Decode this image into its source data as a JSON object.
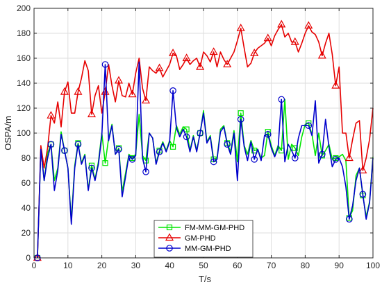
{
  "chart_data": {
    "type": "line",
    "xlabel": "T/s",
    "ylabel": "OSPA/m",
    "xlim": [
      0,
      100
    ],
    "ylim": [
      0,
      200
    ],
    "xticks": [
      0,
      10,
      20,
      30,
      40,
      50,
      60,
      70,
      80,
      90,
      100
    ],
    "yticks": [
      0,
      20,
      40,
      60,
      80,
      100,
      120,
      140,
      160,
      180,
      200
    ],
    "grid": true,
    "legend_position": "bottom-center",
    "series": [
      {
        "name": "FM-MM-GM-PHD",
        "color": "#00e600",
        "marker": "square",
        "marker_every": 4,
        "x": [
          1,
          2,
          3,
          4,
          5,
          6,
          7,
          8,
          9,
          10,
          11,
          12,
          13,
          14,
          15,
          16,
          17,
          18,
          19,
          20,
          21,
          22,
          23,
          24,
          25,
          26,
          27,
          28,
          29,
          30,
          31,
          32,
          33,
          34,
          35,
          36,
          37,
          38,
          39,
          40,
          41,
          42,
          43,
          44,
          45,
          46,
          47,
          48,
          49,
          50,
          51,
          52,
          53,
          54,
          55,
          56,
          57,
          58,
          59,
          60,
          61,
          62,
          63,
          64,
          65,
          66,
          67,
          68,
          69,
          70,
          71,
          72,
          73,
          74,
          75,
          76,
          77,
          78,
          79,
          80,
          81,
          82,
          83,
          84,
          85,
          86,
          87,
          88,
          89,
          90,
          91,
          92,
          93,
          94,
          95,
          96,
          97,
          98,
          99,
          100
        ],
        "values": [
          0,
          87,
          62,
          84,
          91,
          62,
          72,
          101,
          86,
          72,
          30,
          74,
          92,
          76,
          83,
          55,
          74,
          63,
          77,
          100,
          76,
          96,
          107,
          83,
          88,
          53,
          68,
          83,
          80,
          83,
          115,
          82,
          78,
          100,
          96,
          76,
          86,
          93,
          86,
          94,
          89,
          106,
          99,
          105,
          103,
          86,
          98,
          86,
          100,
          118,
          93,
          98,
          79,
          80,
          103,
          106,
          92,
          85,
          102,
          77,
          116,
          90,
          83,
          94,
          86,
          87,
          80,
          82,
          101,
          90,
          82,
          90,
          86,
          127,
          79,
          91,
          88,
          82,
          97,
          107,
          108,
          99,
          82,
          100,
          82,
          86,
          91,
          79,
          80,
          81,
          83,
          78,
          32,
          38,
          66,
          72,
          50,
          33,
          45,
          81
        ]
      },
      {
        "name": "GM-PHD",
        "color": "#e60000",
        "marker": "triangle",
        "marker_every": 4,
        "x": [
          1,
          2,
          3,
          4,
          5,
          6,
          7,
          8,
          9,
          10,
          11,
          12,
          13,
          14,
          15,
          16,
          17,
          18,
          19,
          20,
          21,
          22,
          23,
          24,
          25,
          26,
          27,
          28,
          29,
          30,
          31,
          32,
          33,
          34,
          35,
          36,
          37,
          38,
          39,
          40,
          41,
          42,
          43,
          44,
          45,
          46,
          47,
          48,
          49,
          50,
          51,
          52,
          53,
          54,
          55,
          56,
          57,
          58,
          59,
          60,
          61,
          62,
          63,
          64,
          65,
          66,
          67,
          68,
          69,
          70,
          71,
          72,
          73,
          74,
          75,
          76,
          77,
          78,
          79,
          80,
          81,
          82,
          83,
          84,
          85,
          86,
          87,
          88,
          89,
          90,
          91,
          92,
          93,
          94,
          95,
          96,
          97,
          98,
          99,
          100
        ],
        "values": [
          0,
          90,
          72,
          88,
          114,
          108,
          125,
          105,
          133,
          141,
          116,
          116,
          133,
          144,
          158,
          150,
          115,
          130,
          138,
          116,
          133,
          155,
          138,
          125,
          142,
          130,
          129,
          140,
          131,
          148,
          160,
          136,
          126,
          153,
          150,
          148,
          152,
          145,
          150,
          155,
          164,
          162,
          151,
          155,
          160,
          155,
          158,
          160,
          153,
          165,
          162,
          157,
          165,
          153,
          165,
          159,
          155,
          160,
          165,
          174,
          184,
          168,
          153,
          156,
          164,
          168,
          170,
          172,
          176,
          170,
          178,
          183,
          187,
          177,
          180,
          173,
          173,
          165,
          172,
          180,
          186,
          181,
          179,
          173,
          162,
          172,
          180,
          163,
          138,
          153,
          100,
          100,
          80,
          95,
          108,
          110,
          70,
          80,
          95,
          120
        ]
      },
      {
        "name": "MM-GM-PHD",
        "color": "#0000cc",
        "marker": "circle",
        "marker_every": 4,
        "x": [
          1,
          2,
          3,
          4,
          5,
          6,
          7,
          8,
          9,
          10,
          11,
          12,
          13,
          14,
          15,
          16,
          17,
          18,
          19,
          20,
          21,
          22,
          23,
          24,
          25,
          26,
          27,
          28,
          29,
          30,
          31,
          32,
          33,
          34,
          35,
          36,
          37,
          38,
          39,
          40,
          41,
          42,
          43,
          44,
          45,
          46,
          47,
          48,
          49,
          50,
          51,
          52,
          53,
          54,
          55,
          56,
          57,
          58,
          59,
          60,
          61,
          62,
          63,
          64,
          65,
          66,
          67,
          68,
          69,
          70,
          71,
          72,
          73,
          74,
          75,
          76,
          77,
          78,
          79,
          80,
          81,
          82,
          83,
          84,
          85,
          86,
          87,
          88,
          89,
          90,
          91,
          92,
          93,
          94,
          95,
          96,
          97,
          98,
          99,
          100
        ],
        "values": [
          0,
          87,
          62,
          80,
          91,
          54,
          70,
          99,
          86,
          72,
          27,
          72,
          91,
          75,
          82,
          54,
          72,
          62,
          75,
          98,
          155,
          94,
          106,
          83,
          87,
          49,
          65,
          82,
          79,
          82,
          157,
          80,
          69,
          100,
          96,
          75,
          85,
          92,
          85,
          93,
          134,
          104,
          97,
          103,
          97,
          85,
          97,
          85,
          100,
          116,
          92,
          97,
          77,
          79,
          101,
          105,
          91,
          83,
          100,
          62,
          111,
          89,
          78,
          93,
          79,
          87,
          78,
          98,
          99,
          88,
          81,
          88,
          127,
          77,
          91,
          86,
          80,
          96,
          106,
          106,
          106,
          98,
          126,
          76,
          83,
          111,
          89,
          73,
          79,
          80,
          73,
          57,
          31,
          42,
          62,
          72,
          51,
          31,
          44,
          80
        ]
      }
    ]
  }
}
